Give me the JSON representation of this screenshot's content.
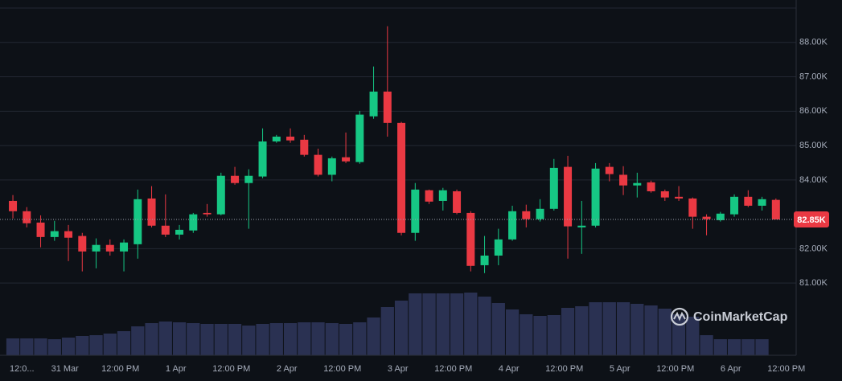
{
  "chart_data": {
    "type": "candlestick",
    "open": [
      83390,
      83090,
      82760,
      82340,
      82510,
      82370,
      81920,
      82110,
      81920,
      82130,
      83460,
      82670,
      82410,
      82530,
      83040,
      83000,
      84120,
      83910,
      84100,
      85120,
      85260,
      85170,
      84730,
      84150,
      84660,
      84520,
      85850,
      86570,
      85660,
      82460,
      83700,
      83390,
      83670,
      83040,
      81520,
      81800,
      82270,
      83090,
      82860,
      83160,
      84380,
      82620,
      82670,
      84380,
      84150,
      83840,
      83930,
      83670,
      83510,
      83460,
      82930,
      82830,
      83000,
      83510,
      83250,
      83420
    ],
    "high": [
      83560,
      83210,
      82970,
      82810,
      82690,
      82460,
      82300,
      82270,
      82270,
      83720,
      83820,
      83580,
      82690,
      83040,
      83300,
      84210,
      84380,
      84310,
      85500,
      85310,
      85500,
      85310,
      84910,
      84680,
      85380,
      86010,
      87300,
      88470,
      85690,
      83910,
      83720,
      83770,
      83720,
      83090,
      82370,
      82580,
      83250,
      83280,
      83440,
      84610,
      84700,
      83390,
      84490,
      84490,
      84400,
      84210,
      83980,
      83720,
      83820,
      83490,
      83000,
      83070,
      83580,
      83700,
      83510,
      83460
    ],
    "low": [
      82880,
      82620,
      82040,
      82230,
      81640,
      81340,
      81430,
      81800,
      81340,
      81710,
      82620,
      82340,
      82270,
      82460,
      82930,
      82970,
      83860,
      82580,
      84050,
      85080,
      85080,
      84680,
      84100,
      83960,
      84490,
      84470,
      85780,
      85260,
      82390,
      82230,
      83300,
      83110,
      83000,
      81340,
      81290,
      81520,
      82230,
      82620,
      82790,
      83110,
      81710,
      81850,
      82620,
      83960,
      83560,
      83490,
      83630,
      83390,
      83390,
      82580,
      82390,
      82790,
      82930,
      83210,
      83110,
      82850
    ],
    "close": [
      83090,
      82740,
      82340,
      82510,
      82320,
      81920,
      82110,
      81920,
      82180,
      83440,
      82670,
      82410,
      82550,
      83000,
      83000,
      84120,
      83910,
      84120,
      85120,
      85260,
      85150,
      84730,
      84150,
      84630,
      84540,
      85900,
      86570,
      85660,
      82460,
      83720,
      83370,
      83700,
      83040,
      81500,
      81800,
      82270,
      83090,
      82860,
      83160,
      84350,
      82650,
      82670,
      84330,
      84170,
      83840,
      83910,
      83670,
      83490,
      83460,
      82930,
      82860,
      83020,
      83510,
      83250,
      83440,
      82850
    ],
    "volume": [
      21,
      21,
      21,
      20,
      22,
      24,
      25,
      27,
      30,
      36,
      40,
      42,
      41,
      40,
      39,
      39,
      39,
      37,
      39,
      40,
      40,
      41,
      41,
      40,
      39,
      41,
      47,
      60,
      68,
      77,
      77,
      77,
      77,
      78,
      73,
      65,
      57,
      51,
      49,
      50,
      59,
      61,
      66,
      66,
      66,
      64,
      62,
      58,
      51,
      48,
      25,
      20,
      20,
      20,
      20,
      null
    ],
    "volume_lim": [
      0,
      100
    ],
    "up_color": "#16c784",
    "down_color": "#ea3943",
    "volume_color": "#2a3152",
    "ylim": [
      78900,
      89000
    ],
    "yticks": [
      {
        "value": 81000,
        "label": "81.00K"
      },
      {
        "value": 82000,
        "label": "82.00K"
      },
      {
        "value": 84000,
        "label": "84.00K"
      },
      {
        "value": 85000,
        "label": "85.00K"
      },
      {
        "value": 86000,
        "label": "86.00K"
      },
      {
        "value": 87000,
        "label": "87.00K"
      },
      {
        "value": 88000,
        "label": "88.00K"
      }
    ],
    "xlim": [
      -0.93,
      56.46
    ],
    "xticks": [
      {
        "value": -0.25,
        "label": "12:0..."
      },
      {
        "value": 3.75,
        "label": "31 Mar"
      },
      {
        "value": 7.75,
        "label": "12:00 PM"
      },
      {
        "value": 11.75,
        "label": "1 Apr"
      },
      {
        "value": 15.75,
        "label": "12:00 PM"
      },
      {
        "value": 19.75,
        "label": "2 Apr"
      },
      {
        "value": 23.75,
        "label": "12:00 PM"
      },
      {
        "value": 27.75,
        "label": "3 Apr"
      },
      {
        "value": 31.75,
        "label": "12:00 PM"
      },
      {
        "value": 35.75,
        "label": "4 Apr"
      },
      {
        "value": 39.75,
        "label": "12:00 PM"
      },
      {
        "value": 43.75,
        "label": "5 Apr"
      },
      {
        "value": 47.75,
        "label": "12:00 PM"
      },
      {
        "value": 51.75,
        "label": "6 Apr"
      },
      {
        "value": 55.75,
        "label": "12:00 PM"
      }
    ],
    "last_price": {
      "value": 82850,
      "label": "82.85K"
    },
    "watermark": "CoinMarketCap",
    "grid": true
  }
}
